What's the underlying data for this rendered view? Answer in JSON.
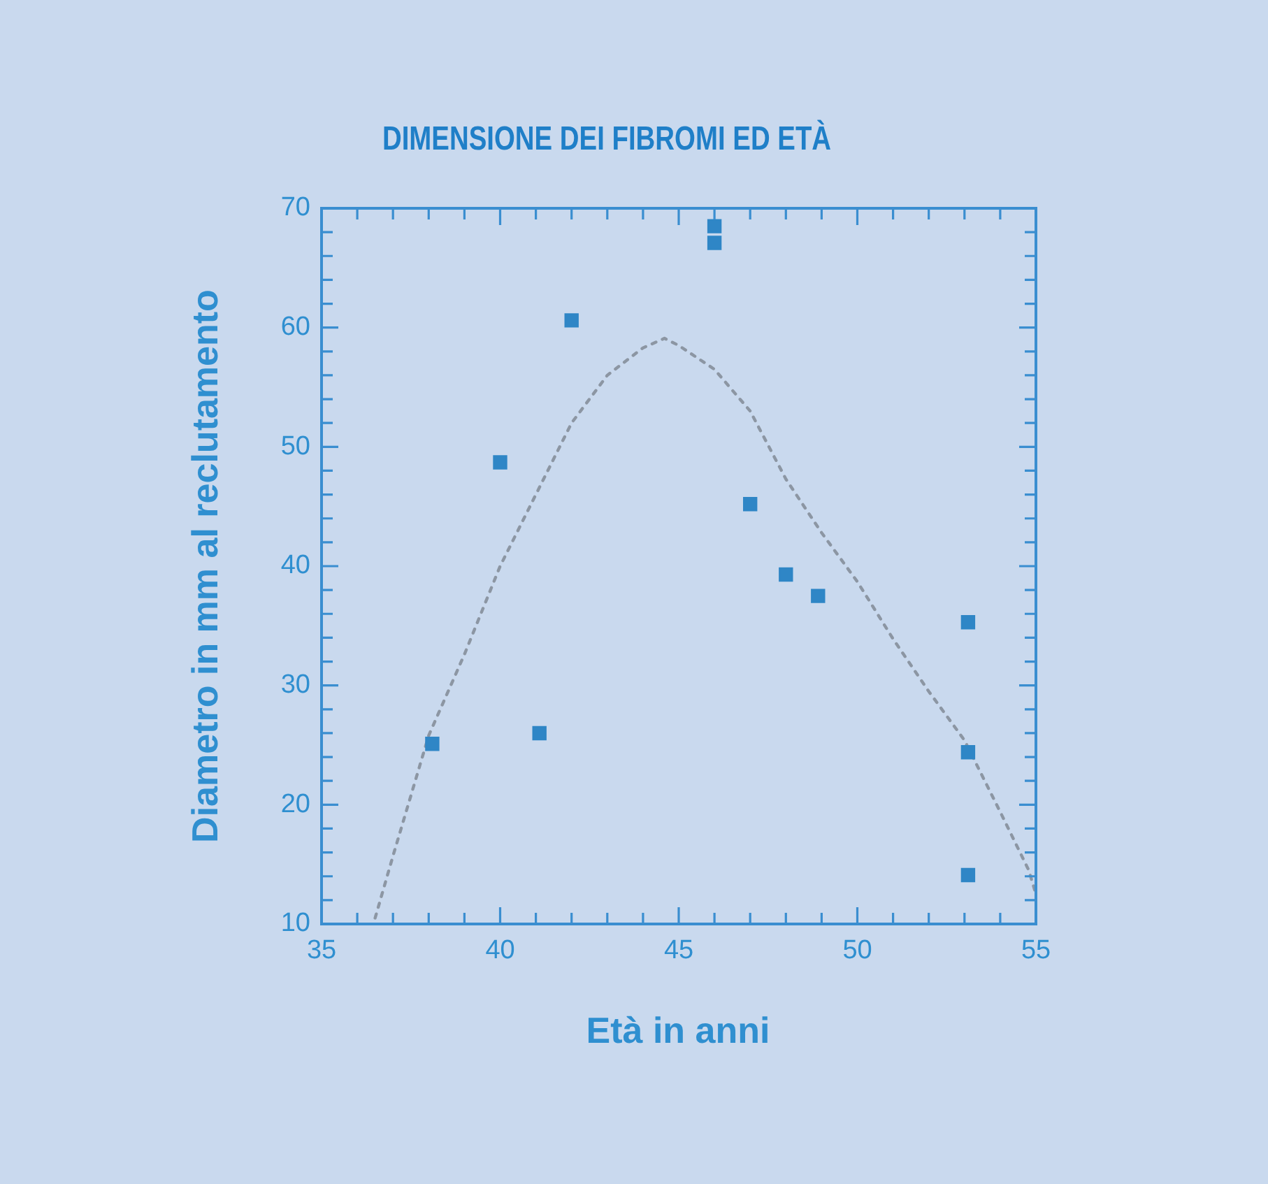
{
  "chart_data": {
    "type": "scatter",
    "title": "DIMENSIONE DEI FIBROMI ED ETÀ",
    "xlabel": "Età in anni",
    "ylabel": "Diametro in mm al reclutamento",
    "xlim": [
      35,
      55
    ],
    "ylim": [
      10,
      70
    ],
    "xticks": [
      35,
      {
        "value": 36,
        "label": null
      },
      {
        "value": 37,
        "label": null
      },
      {
        "value": 38,
        "label": null
      },
      {
        "value": 39,
        "label": null
      },
      40,
      {
        "value": 41,
        "label": null
      },
      {
        "value": 42,
        "label": null
      },
      {
        "value": 43,
        "label": null
      },
      {
        "value": 44,
        "label": null
      },
      45,
      {
        "value": 46,
        "label": null
      },
      {
        "value": 47,
        "label": null
      },
      {
        "value": 48,
        "label": null
      },
      {
        "value": 49,
        "label": null
      },
      50,
      {
        "value": 51,
        "label": null
      },
      {
        "value": 52,
        "label": null
      },
      {
        "value": 53,
        "label": null
      },
      {
        "value": 54,
        "label": null
      },
      55
    ],
    "yticks": [
      10,
      {
        "value": 12,
        "label": null
      },
      {
        "value": 14,
        "label": null
      },
      {
        "value": 16,
        "label": null
      },
      {
        "value": 18,
        "label": null
      },
      20,
      {
        "value": 22,
        "label": null
      },
      {
        "value": 24,
        "label": null
      },
      {
        "value": 26,
        "label": null
      },
      {
        "value": 28,
        "label": null
      },
      30,
      {
        "value": 32,
        "label": null
      },
      {
        "value": 34,
        "label": null
      },
      {
        "value": 36,
        "label": null
      },
      {
        "value": 38,
        "label": null
      },
      40,
      {
        "value": 42,
        "label": null
      },
      {
        "value": 44,
        "label": null
      },
      {
        "value": 46,
        "label": null
      },
      {
        "value": 48,
        "label": null
      },
      50,
      {
        "value": 52,
        "label": null
      },
      {
        "value": 54,
        "label": null
      },
      {
        "value": 56,
        "label": null
      },
      {
        "value": 58,
        "label": null
      },
      60,
      {
        "value": 62,
        "label": null
      },
      {
        "value": 64,
        "label": null
      },
      {
        "value": 66,
        "label": null
      },
      {
        "value": 68,
        "label": null
      },
      70
    ],
    "grid": false,
    "legend": false,
    "series": [
      {
        "type": "scatter",
        "marker": "square",
        "color": "#2f86c6",
        "x": [
          38.1,
          40,
          41.1,
          42,
          46,
          46,
          47,
          48,
          48.9,
          53.1,
          53.1,
          53.1
        ],
        "values": [
          25.1,
          48.7,
          26,
          60.6,
          68.5,
          67.1,
          45.2,
          39.3,
          37.5,
          35.3,
          24.4,
          14.1
        ]
      },
      {
        "type": "line",
        "marker": "none",
        "line_style": "dotted",
        "color": "#8c96a3",
        "x": [
          36.5,
          37,
          38,
          39,
          40,
          41,
          42,
          43,
          44,
          44.6,
          45,
          46,
          47,
          48,
          49,
          50,
          51,
          52,
          53,
          54,
          54.8,
          55
        ],
        "values": [
          10.5,
          15.7,
          25.8,
          32.6,
          40,
          46,
          52,
          56,
          58.3,
          59.1,
          58.5,
          56.5,
          53,
          47.3,
          42.8,
          38.7,
          33.9,
          29.5,
          25.4,
          19.4,
          14.5,
          12.5
        ]
      }
    ]
  }
}
